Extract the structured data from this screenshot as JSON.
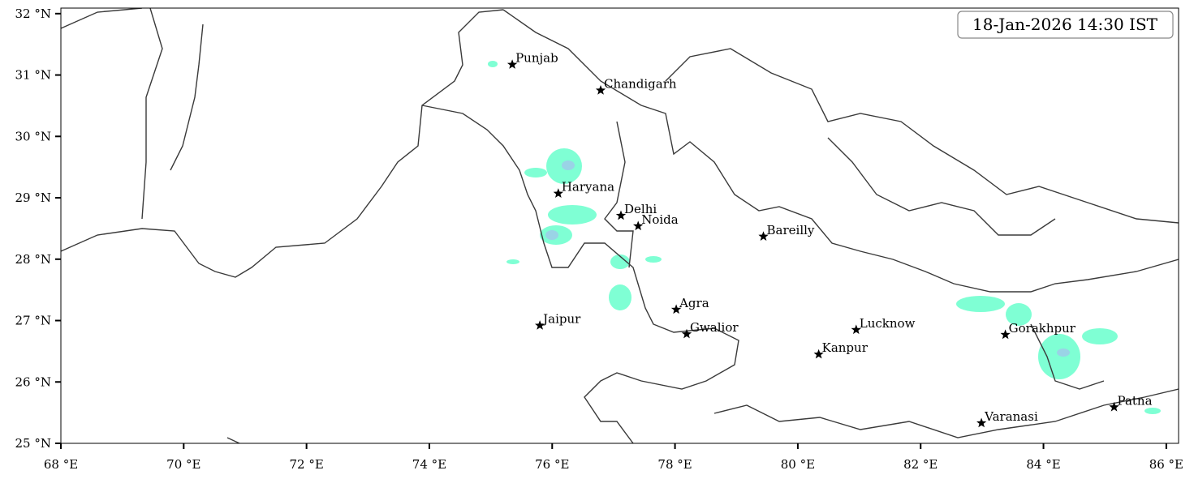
{
  "chart_data": {
    "type": "map",
    "timestamp": "18-Jan-2026 14:30 IST",
    "xlim": [
      68,
      86.2
    ],
    "ylim": [
      25,
      32.09
    ],
    "xticks": [
      {
        "value": 68,
        "label": "68 °E"
      },
      {
        "value": 70,
        "label": "70 °E"
      },
      {
        "value": 72,
        "label": "72 °E"
      },
      {
        "value": 74,
        "label": "74 °E"
      },
      {
        "value": 76,
        "label": "76 °E"
      },
      {
        "value": 78,
        "label": "78 °E"
      },
      {
        "value": 80,
        "label": "80 °E"
      },
      {
        "value": 82,
        "label": "82 °E"
      },
      {
        "value": 84,
        "label": "84 °E"
      },
      {
        "value": 86,
        "label": "86 °E"
      }
    ],
    "yticks": [
      {
        "value": 25,
        "label": "25 °N"
      },
      {
        "value": 26,
        "label": "26 °N"
      },
      {
        "value": 27,
        "label": "27 °N"
      },
      {
        "value": 28,
        "label": "28 °N"
      },
      {
        "value": 29,
        "label": "29 °N"
      },
      {
        "value": 30,
        "label": "30 °N"
      },
      {
        "value": 31,
        "label": "31 °N"
      },
      {
        "value": 32,
        "label": "32 °N"
      }
    ],
    "cities": {
      "names": [
        "Punjab",
        "Chandigarh",
        "Haryana",
        "Delhi",
        "Noida",
        "Bareilly",
        "Agra",
        "Jaipur",
        "Gwalior",
        "Lucknow",
        "Kanpur",
        "Gorakhpur",
        "Varanasi",
        "Patna"
      ],
      "x": [
        75.35,
        76.79,
        76.1,
        77.12,
        77.4,
        79.44,
        78.02,
        75.8,
        78.19,
        80.95,
        80.34,
        83.38,
        82.99,
        85.15
      ],
      "y": [
        31.17,
        30.75,
        29.07,
        28.71,
        28.54,
        28.37,
        27.18,
        26.92,
        26.78,
        26.85,
        26.45,
        26.77,
        25.33,
        25.59
      ]
    }
  }
}
